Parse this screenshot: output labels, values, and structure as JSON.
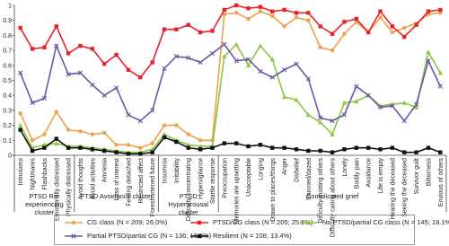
{
  "chart_data": {
    "type": "line",
    "groups": [
      {
        "label": "PTSD Re-experiencing cluster",
        "categories": [
          "Intrusions",
          "Nightmares",
          "Flashbacks",
          "Emotionally distressed",
          "Physically distressed"
        ]
      },
      {
        "label": "PTSD Avoidance cluster",
        "categories": [
          "Avoid thoughts",
          "Avoid activities",
          "Amnesia",
          "Loss of interest",
          "Feeling detached",
          "Restricted affect",
          "Foreshortened future"
        ]
      },
      {
        "label": "PTSD Hyperarousal cluster",
        "categories": [
          "Insomnia",
          "Irritability",
          "Difficulty concentrating",
          "Hypervigilance",
          "Startle response"
        ]
      },
      {
        "label": "Complicated grief",
        "categories": [
          "Preoccupation",
          "Memories are upsetting",
          "Unacceptable",
          "Longing",
          "Drawn to places/things",
          "Anger",
          "Disbelief",
          "Stunned/dazed",
          "Difficulty trusting others",
          "Difficulty caring about others",
          "Lonely",
          "Bodily pain",
          "Avoidance",
          "Life is empty",
          "Hearing the deceased",
          "Seeing the deceased",
          "Survivor guilt",
          "Bitterness",
          "Envious of others"
        ]
      }
    ],
    "series": [
      {
        "name": "CG class (N = 209; 26.0%)",
        "color": "#f0a04b",
        "marker": "circle",
        "values": [
          0.28,
          0.1,
          0.14,
          0.29,
          0.17,
          0.16,
          0.14,
          0.15,
          0.07,
          0.07,
          0.05,
          0.08,
          0.2,
          0.2,
          0.14,
          0.1,
          0.1,
          0.94,
          0.95,
          0.91,
          0.96,
          0.93,
          0.86,
          0.92,
          0.9,
          0.72,
          0.7,
          0.81,
          0.89,
          0.82,
          0.92,
          0.82,
          0.85,
          0.88,
          0.94,
          0.95
        ]
      },
      {
        "name": "PTSD/CG class (N = 205; 25.5%)",
        "color": "#e8222a",
        "marker": "square",
        "values": [
          0.85,
          0.71,
          0.72,
          0.86,
          0.68,
          0.73,
          0.71,
          0.61,
          0.67,
          0.57,
          0.52,
          0.62,
          0.84,
          0.84,
          0.87,
          0.82,
          0.83,
          0.97,
          1.0,
          0.98,
          0.99,
          0.96,
          0.97,
          0.95,
          0.95,
          0.86,
          0.81,
          0.89,
          0.91,
          0.82,
          0.96,
          0.86,
          0.79,
          0.87,
          0.96,
          0.97
        ]
      },
      {
        "name": "No PTSD/partial CG  class (N = 145; 18.1%)",
        "color": "#8dc63f",
        "marker": "triangle",
        "values": [
          0.2,
          0.05,
          0.07,
          0.08,
          0.06,
          0.06,
          0.05,
          0.04,
          0.03,
          0.02,
          0.02,
          0.04,
          0.14,
          0.1,
          0.07,
          0.06,
          0.06,
          0.66,
          0.74,
          0.6,
          0.73,
          0.64,
          0.39,
          0.37,
          0.27,
          0.22,
          0.14,
          0.35,
          0.36,
          0.4,
          0.33,
          0.34,
          0.35,
          0.32,
          0.69,
          0.55
        ]
      },
      {
        "name": "Partial PTSD/partial CG (N = 136; 16.9%)",
        "color": "#6a58a6",
        "marker": "x",
        "values": [
          0.55,
          0.35,
          0.38,
          0.73,
          0.54,
          0.55,
          0.47,
          0.4,
          0.45,
          0.27,
          0.23,
          0.3,
          0.58,
          0.66,
          0.65,
          0.62,
          0.68,
          0.74,
          0.63,
          0.64,
          0.56,
          0.52,
          0.57,
          0.61,
          0.51,
          0.25,
          0.23,
          0.27,
          0.46,
          0.4,
          0.32,
          0.33,
          0.23,
          0.34,
          0.63,
          0.46
        ]
      },
      {
        "name": "Resilient (N = 108; 13.4%)",
        "color": "#111111",
        "marker": "square",
        "values": [
          0.17,
          0.03,
          0.05,
          0.11,
          0.05,
          0.05,
          0.04,
          0.03,
          0.02,
          0.01,
          0.01,
          0.02,
          0.12,
          0.09,
          0.05,
          0.04,
          0.05,
          0.08,
          0.08,
          0.06,
          0.07,
          0.05,
          0.05,
          0.04,
          0.03,
          0.03,
          0.02,
          0.04,
          0.05,
          0.05,
          0.04,
          0.05,
          0.02,
          0.02,
          0.05,
          0.02
        ]
      }
    ],
    "ylim": [
      0,
      1
    ],
    "yticks": [
      0,
      0.1,
      0.2,
      0.3,
      0.4,
      0.5,
      0.6,
      0.7,
      0.8,
      0.9,
      1
    ]
  }
}
